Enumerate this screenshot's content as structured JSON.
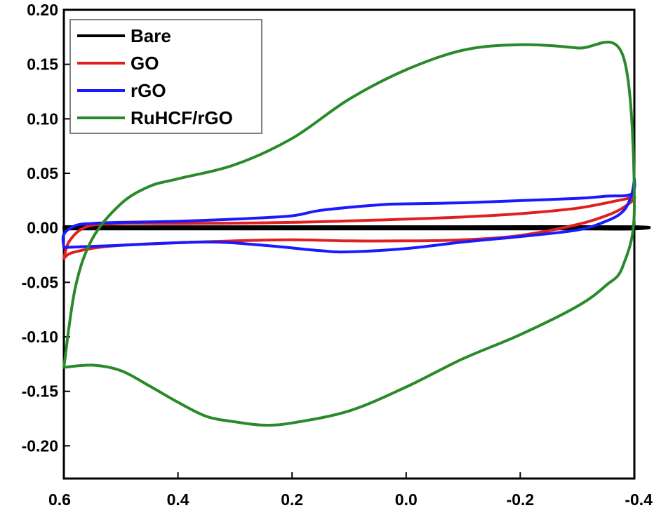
{
  "chart_data": {
    "type": "line",
    "title": "",
    "xlabel": "",
    "ylabel": "",
    "xlim": [
      0.6,
      -0.4
    ],
    "ylim": [
      -0.23,
      0.2
    ],
    "x_reversed": true,
    "x_ticks": [
      "0.6",
      "0.4",
      "0.2",
      "0.0",
      "-0.2",
      "-0.4"
    ],
    "y_ticks": [
      "0.20",
      "0.15",
      "0.10",
      "0.05",
      "0.00",
      "-0.05",
      "-0.10",
      "-0.15",
      "-0.20"
    ],
    "x_tick_values": [
      0.6,
      0.4,
      0.2,
      0.0,
      -0.2,
      -0.4
    ],
    "y_tick_values": [
      0.2,
      0.15,
      0.1,
      0.05,
      0.0,
      -0.05,
      -0.1,
      -0.15,
      -0.2
    ],
    "grid": false,
    "legend_position": "top-left",
    "series": [
      {
        "name": "Bare",
        "color": "#000000",
        "points": [
          [
            0.6,
            -0.001
          ],
          [
            0.3,
            -0.001
          ],
          [
            0.0,
            -0.001
          ],
          [
            -0.3,
            -0.001
          ],
          [
            -0.4,
            -0.001
          ],
          [
            -0.4,
            0.001
          ],
          [
            -0.1,
            0.001
          ],
          [
            0.2,
            0.001
          ],
          [
            0.6,
            0.001
          ]
        ]
      },
      {
        "name": "GO",
        "color": "#e02020",
        "points": [
          [
            0.6,
            -0.028
          ],
          [
            0.58,
            -0.022
          ],
          [
            0.5,
            -0.016
          ],
          [
            0.3,
            -0.012
          ],
          [
            0.2,
            -0.011
          ],
          [
            0.1,
            -0.012
          ],
          [
            0.0,
            -0.012
          ],
          [
            -0.1,
            -0.011
          ],
          [
            -0.2,
            -0.007
          ],
          [
            -0.3,
            0.003
          ],
          [
            -0.36,
            0.013
          ],
          [
            -0.39,
            0.022
          ],
          [
            -0.4,
            0.028
          ],
          [
            -0.38,
            0.026
          ],
          [
            -0.3,
            0.018
          ],
          [
            -0.2,
            0.013
          ],
          [
            -0.1,
            0.01
          ],
          [
            0.0,
            0.008
          ],
          [
            0.2,
            0.005
          ],
          [
            0.4,
            0.004
          ],
          [
            0.5,
            0.004
          ],
          [
            0.56,
            0.001
          ],
          [
            0.59,
            -0.012
          ],
          [
            0.6,
            -0.028
          ]
        ]
      },
      {
        "name": "rGO",
        "color": "#1a1aff",
        "points": [
          [
            0.6,
            -0.018
          ],
          [
            0.55,
            -0.017
          ],
          [
            0.5,
            -0.016
          ],
          [
            0.35,
            -0.013
          ],
          [
            0.25,
            -0.016
          ],
          [
            0.15,
            -0.021
          ],
          [
            0.1,
            -0.022
          ],
          [
            0.0,
            -0.019
          ],
          [
            -0.1,
            -0.013
          ],
          [
            -0.2,
            -0.008
          ],
          [
            -0.3,
            -0.002
          ],
          [
            -0.35,
            0.006
          ],
          [
            -0.38,
            0.015
          ],
          [
            -0.395,
            0.03
          ],
          [
            -0.4,
            0.045
          ],
          [
            -0.395,
            0.031
          ],
          [
            -0.35,
            0.029
          ],
          [
            -0.3,
            0.027
          ],
          [
            -0.2,
            0.025
          ],
          [
            -0.1,
            0.023
          ],
          [
            0.0,
            0.022
          ],
          [
            0.05,
            0.021
          ],
          [
            0.15,
            0.016
          ],
          [
            0.2,
            0.011
          ],
          [
            0.3,
            0.008
          ],
          [
            0.4,
            0.006
          ],
          [
            0.5,
            0.005
          ],
          [
            0.55,
            0.004
          ],
          [
            0.58,
            0.002
          ],
          [
            0.6,
            -0.006
          ],
          [
            0.6,
            -0.018
          ]
        ]
      },
      {
        "name": "RuHCF/rGO",
        "color": "#2a8a2a",
        "points": [
          [
            0.6,
            -0.128
          ],
          [
            0.55,
            -0.126
          ],
          [
            0.5,
            -0.131
          ],
          [
            0.45,
            -0.145
          ],
          [
            0.4,
            -0.16
          ],
          [
            0.35,
            -0.173
          ],
          [
            0.3,
            -0.178
          ],
          [
            0.25,
            -0.181
          ],
          [
            0.2,
            -0.179
          ],
          [
            0.1,
            -0.168
          ],
          [
            0.0,
            -0.146
          ],
          [
            -0.1,
            -0.12
          ],
          [
            -0.2,
            -0.098
          ],
          [
            -0.3,
            -0.072
          ],
          [
            -0.35,
            -0.053
          ],
          [
            -0.38,
            -0.035
          ],
          [
            -0.4,
            0.02
          ],
          [
            -0.38,
            0.158
          ],
          [
            -0.3,
            0.165
          ],
          [
            -0.2,
            0.168
          ],
          [
            -0.1,
            0.163
          ],
          [
            0.0,
            0.145
          ],
          [
            0.1,
            0.118
          ],
          [
            0.2,
            0.082
          ],
          [
            0.3,
            0.058
          ],
          [
            0.4,
            0.045
          ],
          [
            0.45,
            0.038
          ],
          [
            0.5,
            0.022
          ],
          [
            0.55,
            -0.01
          ],
          [
            0.58,
            -0.055
          ],
          [
            0.6,
            -0.128
          ]
        ]
      }
    ]
  }
}
